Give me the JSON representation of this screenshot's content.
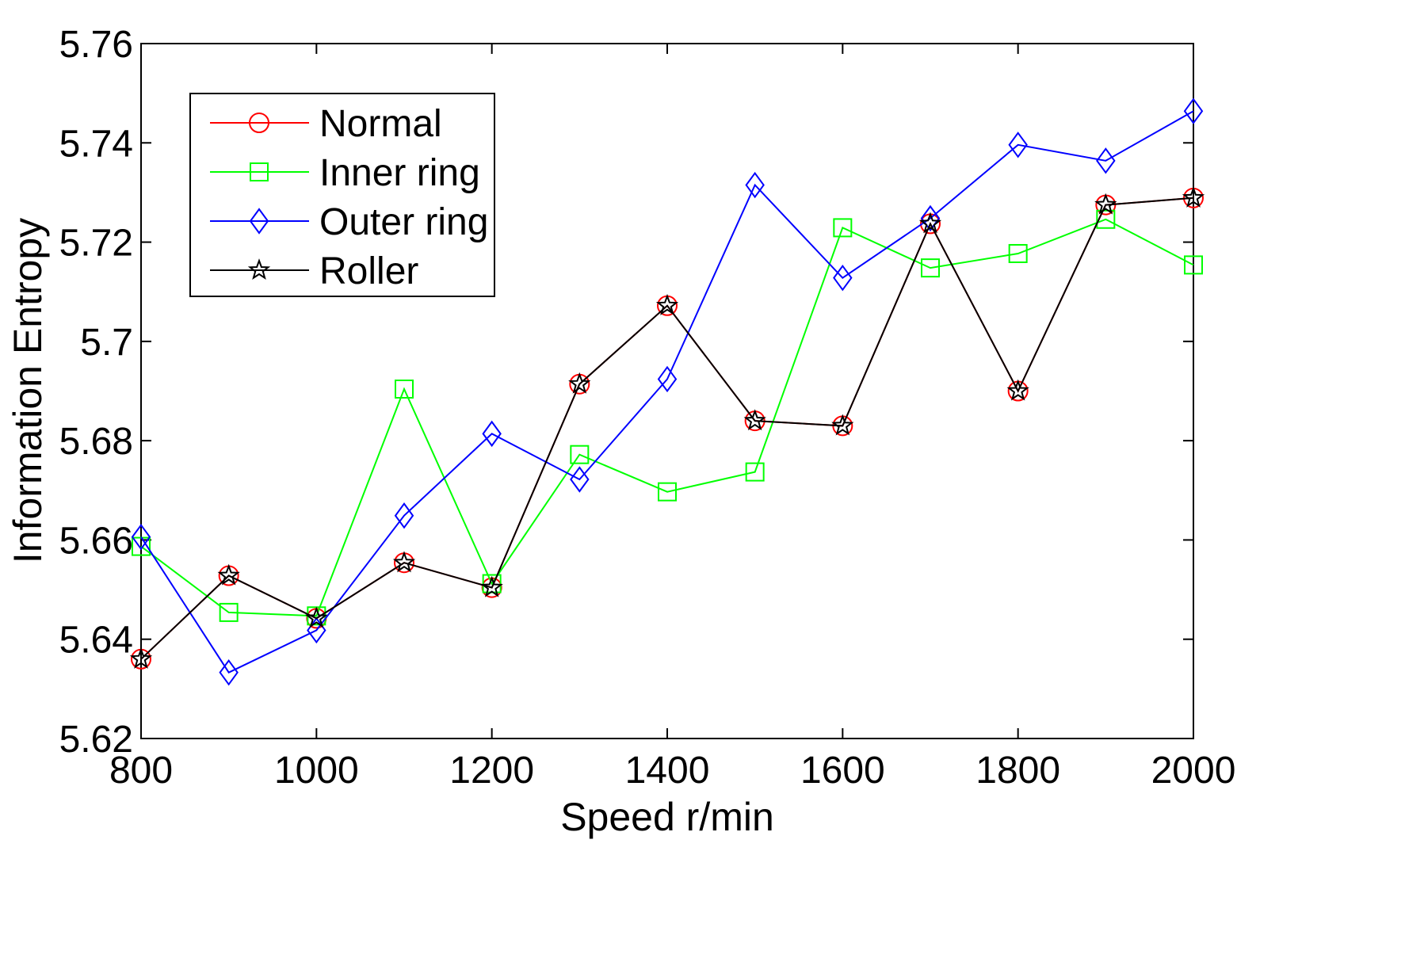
{
  "chart_data": {
    "type": "line",
    "title": "",
    "xlabel": "Speed r/min",
    "ylabel": "Information Entropy",
    "xlim": [
      800,
      2000
    ],
    "ylim": [
      5.62,
      5.76
    ],
    "xticks": [
      800,
      1000,
      1200,
      1400,
      1600,
      1800,
      2000
    ],
    "xtick_labels": [
      "800",
      "1000",
      "1200",
      "1400",
      "1600",
      "1800",
      "2000"
    ],
    "yticks": [
      5.62,
      5.64,
      5.66,
      5.68,
      5.7,
      5.72,
      5.74,
      5.76
    ],
    "ytick_labels": [
      "5.62",
      "5.64",
      "5.66",
      "5.68",
      "5.7",
      "5.72",
      "5.74",
      "5.76"
    ],
    "grid": false,
    "legend_position": "top-left",
    "x": [
      800,
      900,
      1000,
      1100,
      1200,
      1300,
      1400,
      1500,
      1600,
      1700,
      1800,
      1900,
      2000
    ],
    "series": [
      {
        "name": "Normal",
        "color": "#ff0000",
        "marker": "circle",
        "values": [
          5.636,
          5.6528,
          5.6442,
          5.6554,
          5.6504,
          5.6914,
          5.7072,
          5.684,
          5.683,
          5.7237,
          5.69,
          5.7275,
          5.7289
        ]
      },
      {
        "name": "Inner ring",
        "color": "#00ff00",
        "marker": "square",
        "values": [
          5.6587,
          5.6454,
          5.6447,
          5.6904,
          5.6512,
          5.6772,
          5.6697,
          5.6737,
          5.7229,
          5.7148,
          5.7177,
          5.7246,
          5.7154
        ]
      },
      {
        "name": "Outer ring",
        "color": "#0000ff",
        "marker": "diamond",
        "values": [
          5.6606,
          5.6333,
          5.6418,
          5.6649,
          5.6814,
          5.6722,
          5.6924,
          5.7315,
          5.7128,
          5.7248,
          5.7396,
          5.7364,
          5.7464
        ]
      },
      {
        "name": "Roller",
        "color": "#000000",
        "marker": "star",
        "values": [
          5.636,
          5.6528,
          5.6442,
          5.6554,
          5.6504,
          5.6914,
          5.7072,
          5.684,
          5.683,
          5.7237,
          5.69,
          5.7275,
          5.7289
        ]
      }
    ]
  }
}
